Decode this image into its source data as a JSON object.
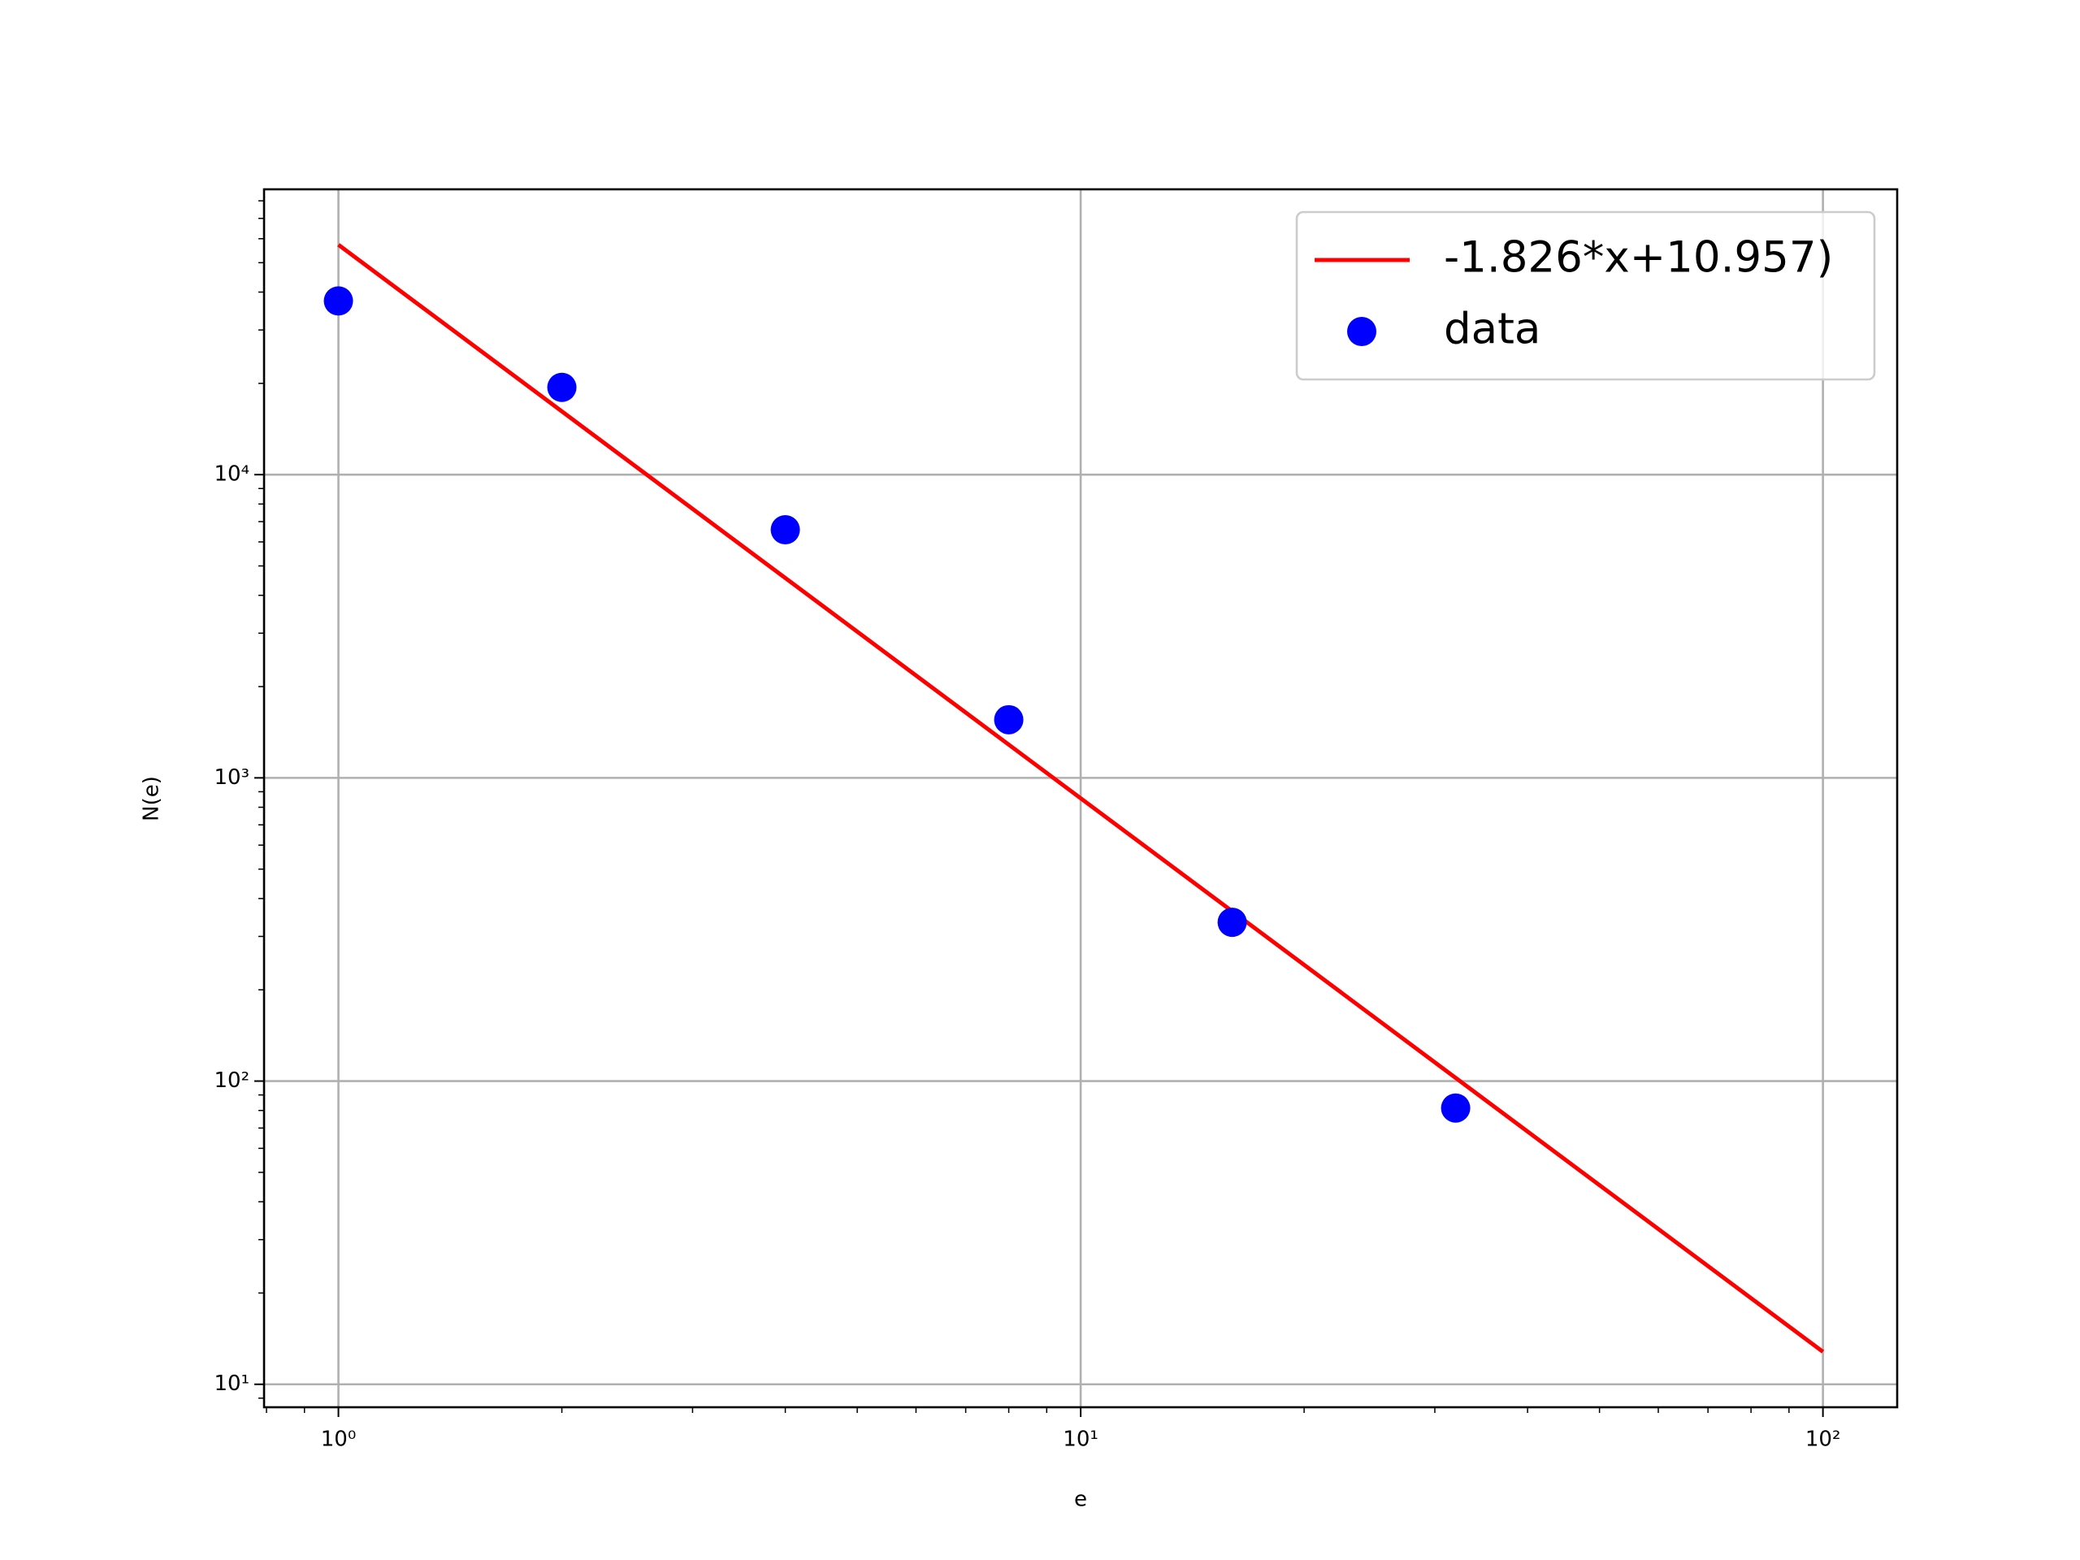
{
  "chart_data": {
    "type": "scatter",
    "xlabel": "e",
    "ylabel": "N(e)",
    "xscale": "log",
    "yscale": "log",
    "xlim": [
      0.794,
      125.9
    ],
    "ylim": [
      8.4,
      87300
    ],
    "xticks": [
      {
        "value": 1,
        "label": "10⁰"
      },
      {
        "value": 10,
        "label": "10¹"
      },
      {
        "value": 100,
        "label": "10²"
      }
    ],
    "yticks": [
      {
        "value": 10,
        "label": "10¹"
      },
      {
        "value": 100,
        "label": "10²"
      },
      {
        "value": 1000,
        "label": "10³"
      },
      {
        "value": 10000,
        "label": "10⁴"
      }
    ],
    "xminorticks": [
      0.8,
      0.9,
      2,
      3,
      4,
      5,
      6,
      7,
      8,
      9,
      20,
      30,
      40,
      50,
      60,
      70,
      80,
      90
    ],
    "yminorticks": [
      9,
      20,
      30,
      40,
      50,
      60,
      70,
      80,
      90,
      200,
      300,
      400,
      500,
      600,
      700,
      800,
      900,
      2000,
      3000,
      4000,
      5000,
      6000,
      7000,
      8000,
      9000,
      20000,
      30000,
      40000,
      50000,
      60000,
      70000,
      80000
    ],
    "grid": true,
    "legend": "upper right",
    "series": [
      {
        "name": "-1.826*x+10.957)",
        "type": "line",
        "color": "#ff0000",
        "x": [
          1,
          100
        ],
        "values": [
          57300,
          12.8
        ]
      },
      {
        "name": "data",
        "type": "scatter",
        "color": "#0000ff",
        "x": [
          1,
          2,
          4,
          8,
          16,
          32
        ],
        "values": [
          37400,
          19400,
          6580,
          1555,
          334,
          81.5
        ]
      }
    ]
  }
}
